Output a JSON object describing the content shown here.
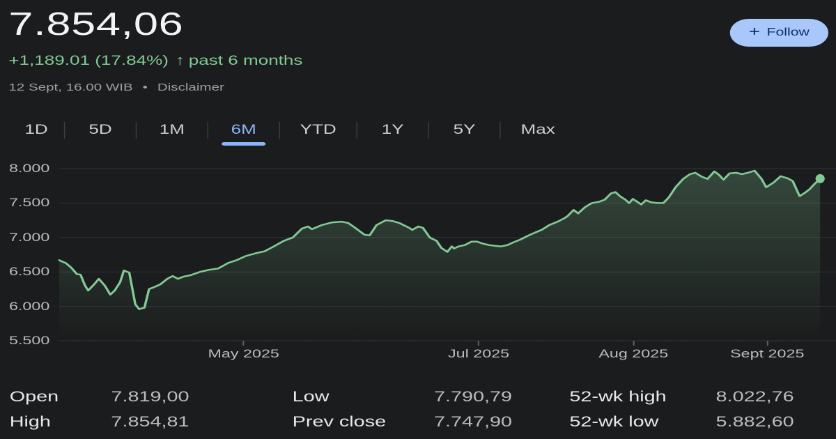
{
  "header": {
    "price": "7.854,06",
    "change": "+1,189.01 (17.84%)",
    "change_direction": "up",
    "arrow": "↑",
    "period": "past 6 months",
    "timestamp": "12 Sept, 16.00 WIB",
    "bullet": "•",
    "disclaimer": "Disclaimer",
    "follow": {
      "plus": "+",
      "label": "Follow"
    }
  },
  "colors": {
    "background": "#1b1c1d",
    "price_text": "#f3f4f6",
    "positive_green": "#81c995",
    "muted_gray": "#9aa0a6",
    "axis_gray": "#b8bcc0",
    "gridline": "#313337",
    "tick": "#5c6064",
    "active_tab_blue": "#8ab4f8",
    "follow_bg": "#a8c7fa",
    "follow_text": "#0b306b"
  },
  "tabs": [
    {
      "label": "1D",
      "active": false
    },
    {
      "label": "5D",
      "active": false
    },
    {
      "label": "1M",
      "active": false
    },
    {
      "label": "6M",
      "active": true
    },
    {
      "label": "YTD",
      "active": false
    },
    {
      "label": "1Y",
      "active": false
    },
    {
      "label": "5Y",
      "active": false
    },
    {
      "label": "Max",
      "active": false
    }
  ],
  "chart_data": {
    "type": "area",
    "period": "6M",
    "grid": true,
    "line_color": "#81c995",
    "ylim": [
      5500,
      8000
    ],
    "y_ticks": [
      {
        "label": "8.000",
        "value": 8000
      },
      {
        "label": "7.500",
        "value": 7500
      },
      {
        "label": "7.000",
        "value": 7000
      },
      {
        "label": "6.500",
        "value": 6500
      },
      {
        "label": "6.000",
        "value": 6000
      },
      {
        "label": "5.500",
        "value": 5500
      }
    ],
    "x_ticks": [
      {
        "label": "May 2025",
        "f": 0.242
      },
      {
        "label": "Jul 2025",
        "f": 0.551
      },
      {
        "label": "Aug 2025",
        "f": 0.755
      },
      {
        "label": "Sept 2025",
        "f": 0.931
      }
    ],
    "latest_value": 7854.06,
    "points": [
      [
        0.0,
        6670
      ],
      [
        0.009,
        6625
      ],
      [
        0.016,
        6560
      ],
      [
        0.023,
        6470
      ],
      [
        0.028,
        6460
      ],
      [
        0.034,
        6300
      ],
      [
        0.038,
        6230
      ],
      [
        0.046,
        6320
      ],
      [
        0.052,
        6400
      ],
      [
        0.06,
        6300
      ],
      [
        0.067,
        6170
      ],
      [
        0.073,
        6230
      ],
      [
        0.08,
        6350
      ],
      [
        0.085,
        6520
      ],
      [
        0.092,
        6490
      ],
      [
        0.1,
        6030
      ],
      [
        0.105,
        5960
      ],
      [
        0.112,
        5980
      ],
      [
        0.118,
        6250
      ],
      [
        0.125,
        6280
      ],
      [
        0.133,
        6320
      ],
      [
        0.142,
        6400
      ],
      [
        0.149,
        6440
      ],
      [
        0.156,
        6400
      ],
      [
        0.163,
        6430
      ],
      [
        0.172,
        6450
      ],
      [
        0.185,
        6500
      ],
      [
        0.197,
        6530
      ],
      [
        0.209,
        6550
      ],
      [
        0.222,
        6630
      ],
      [
        0.233,
        6670
      ],
      [
        0.245,
        6730
      ],
      [
        0.258,
        6770
      ],
      [
        0.27,
        6800
      ],
      [
        0.282,
        6870
      ],
      [
        0.295,
        6950
      ],
      [
        0.307,
        7000
      ],
      [
        0.319,
        7130
      ],
      [
        0.327,
        7160
      ],
      [
        0.332,
        7120
      ],
      [
        0.345,
        7180
      ],
      [
        0.359,
        7220
      ],
      [
        0.371,
        7230
      ],
      [
        0.38,
        7210
      ],
      [
        0.389,
        7140
      ],
      [
        0.401,
        7040
      ],
      [
        0.408,
        7030
      ],
      [
        0.417,
        7180
      ],
      [
        0.429,
        7250
      ],
      [
        0.438,
        7240
      ],
      [
        0.447,
        7210
      ],
      [
        0.46,
        7140
      ],
      [
        0.464,
        7110
      ],
      [
        0.472,
        7160
      ],
      [
        0.478,
        7140
      ],
      [
        0.487,
        7000
      ],
      [
        0.496,
        6950
      ],
      [
        0.502,
        6850
      ],
      [
        0.51,
        6790
      ],
      [
        0.516,
        6870
      ],
      [
        0.519,
        6840
      ],
      [
        0.525,
        6870
      ],
      [
        0.533,
        6890
      ],
      [
        0.542,
        6940
      ],
      [
        0.549,
        6940
      ],
      [
        0.557,
        6910
      ],
      [
        0.565,
        6890
      ],
      [
        0.572,
        6880
      ],
      [
        0.581,
        6870
      ],
      [
        0.589,
        6890
      ],
      [
        0.597,
        6930
      ],
      [
        0.606,
        6970
      ],
      [
        0.615,
        7020
      ],
      [
        0.625,
        7070
      ],
      [
        0.634,
        7110
      ],
      [
        0.644,
        7180
      ],
      [
        0.655,
        7230
      ],
      [
        0.664,
        7280
      ],
      [
        0.668,
        7310
      ],
      [
        0.676,
        7400
      ],
      [
        0.682,
        7350
      ],
      [
        0.691,
        7440
      ],
      [
        0.7,
        7500
      ],
      [
        0.71,
        7520
      ],
      [
        0.717,
        7550
      ],
      [
        0.725,
        7640
      ],
      [
        0.731,
        7660
      ],
      [
        0.737,
        7600
      ],
      [
        0.744,
        7550
      ],
      [
        0.749,
        7500
      ],
      [
        0.754,
        7560
      ],
      [
        0.758,
        7530
      ],
      [
        0.765,
        7480
      ],
      [
        0.771,
        7540
      ],
      [
        0.778,
        7510
      ],
      [
        0.786,
        7500
      ],
      [
        0.794,
        7500
      ],
      [
        0.801,
        7580
      ],
      [
        0.81,
        7730
      ],
      [
        0.82,
        7850
      ],
      [
        0.829,
        7920
      ],
      [
        0.836,
        7940
      ],
      [
        0.845,
        7880
      ],
      [
        0.852,
        7850
      ],
      [
        0.861,
        7960
      ],
      [
        0.867,
        7910
      ],
      [
        0.873,
        7840
      ],
      [
        0.881,
        7930
      ],
      [
        0.89,
        7940
      ],
      [
        0.897,
        7920
      ],
      [
        0.905,
        7940
      ],
      [
        0.914,
        7970
      ],
      [
        0.923,
        7850
      ],
      [
        0.929,
        7730
      ],
      [
        0.939,
        7800
      ],
      [
        0.948,
        7890
      ],
      [
        0.957,
        7860
      ],
      [
        0.964,
        7820
      ],
      [
        0.973,
        7600
      ],
      [
        0.98,
        7650
      ],
      [
        0.986,
        7700
      ],
      [
        0.992,
        7770
      ],
      [
        1.0,
        7854.06
      ]
    ]
  },
  "stats": [
    {
      "label": "Open",
      "value": "7.819,00"
    },
    {
      "label": "High",
      "value": "7.854,81"
    },
    {
      "label": "Low",
      "value": "7.790,79"
    },
    {
      "label": "Prev close",
      "value": "7.747,90"
    },
    {
      "label": "52-wk high",
      "value": "8.022,76"
    },
    {
      "label": "52-wk low",
      "value": "5.882,60"
    }
  ]
}
